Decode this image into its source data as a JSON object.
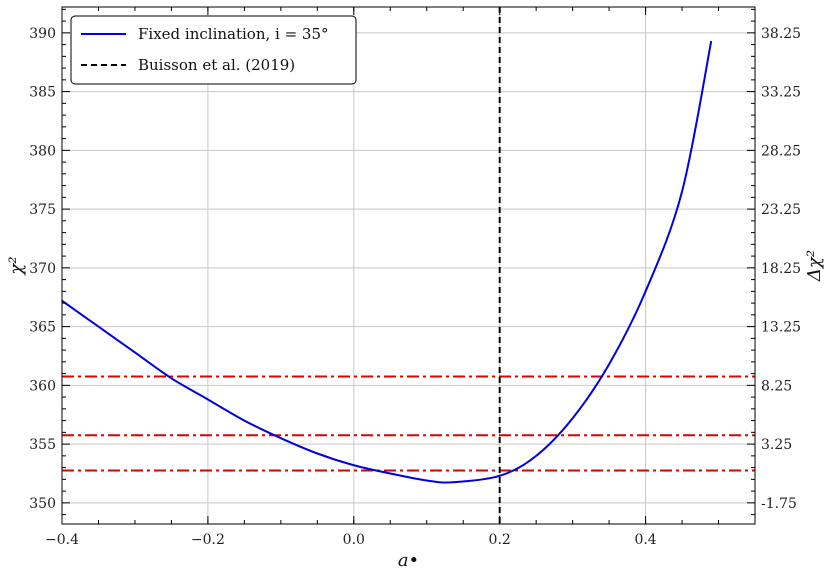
{
  "chart_data": {
    "type": "line",
    "xlabel": "a•",
    "ylabel": "χ²",
    "y2label": "Δχ²",
    "xlim": [
      -0.4,
      0.55
    ],
    "ylim": [
      348.2,
      392.2
    ],
    "grid": true,
    "legend_position": "top-left",
    "x_ticks": [
      -0.4,
      -0.2,
      0.0,
      0.2,
      0.4
    ],
    "x_tick_labels": [
      "−0.4",
      "−0.2",
      "0.0",
      "0.2",
      "0.4"
    ],
    "y_ticks": [
      350,
      355,
      360,
      365,
      370,
      375,
      380,
      385,
      390
    ],
    "y_tick_labels": [
      "350",
      "355",
      "360",
      "365",
      "370",
      "375",
      "380",
      "385",
      "390"
    ],
    "y2_ticks": [
      350,
      355,
      360,
      365,
      370,
      375,
      380,
      385,
      390
    ],
    "y2_tick_labels": [
      "-1.75",
      "3.25",
      "8.25",
      "13.25",
      "18.25",
      "23.25",
      "28.25",
      "33.25",
      "38.25"
    ],
    "series": [
      {
        "name": "Fixed inclination, i = 35°",
        "color": "#0000e0",
        "style": "solid",
        "x": [
          -0.4,
          -0.35,
          -0.3,
          -0.25,
          -0.2,
          -0.15,
          -0.1,
          -0.05,
          0.0,
          0.05,
          0.1,
          0.135,
          0.2,
          0.25,
          0.3,
          0.35,
          0.4,
          0.45,
          0.49
        ],
        "y": [
          367.2,
          365.0,
          362.8,
          360.6,
          358.8,
          357.0,
          355.5,
          354.2,
          353.2,
          352.5,
          351.9,
          351.75,
          352.3,
          354.0,
          357.2,
          361.8,
          368.0,
          376.5,
          389.3
        ]
      }
    ],
    "vlines": [
      {
        "name": "Buisson et al. (2019)",
        "x": 0.2,
        "color": "#000000",
        "style": "dashed"
      }
    ],
    "hlines": [
      {
        "y": 352.75,
        "color": "#e00000",
        "style": "dashdot"
      },
      {
        "y": 355.75,
        "color": "#e00000",
        "style": "dashdot"
      },
      {
        "y": 360.75,
        "color": "#e00000",
        "style": "dashdot"
      }
    ]
  }
}
